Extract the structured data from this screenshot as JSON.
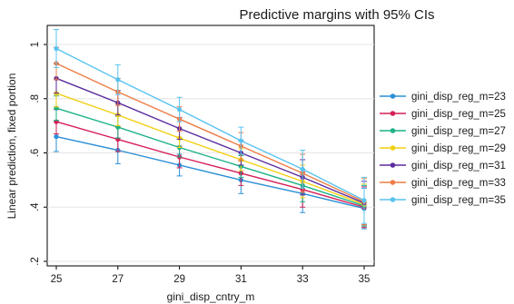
{
  "chart_data": {
    "type": "line",
    "title": "Predictive margins with 95% CIs",
    "xlabel": "gini_disp_cntry_m",
    "ylabel": "Linear prediction, fixed portion",
    "x": [
      25,
      27,
      29,
      31,
      33,
      35
    ],
    "x_ticks": [
      "25",
      "27",
      "29",
      "31",
      "33",
      "35"
    ],
    "y_ticks": [
      "1",
      ".8",
      ".6",
      ".4",
      ".2"
    ],
    "y_tick_values": [
      1.0,
      0.8,
      0.6,
      0.4,
      0.2
    ],
    "xlim": [
      25,
      35
    ],
    "ylim": [
      0.17,
      1.08
    ],
    "grid": true,
    "legend_position": "right",
    "error_bars": "95% CI",
    "series": [
      {
        "name": "gini_disp_reg_m=23",
        "color": "#2b8fd6",
        "values": [
          0.66,
          0.61,
          0.555,
          0.5,
          0.45,
          0.395
        ],
        "ci_low": [
          0.605,
          0.56,
          0.515,
          0.45,
          0.38,
          0.32
        ],
        "ci_high": [
          0.715,
          0.655,
          0.595,
          0.55,
          0.52,
          0.47
        ]
      },
      {
        "name": "gini_disp_reg_m=25",
        "color": "#d41e57",
        "values": [
          0.715,
          0.65,
          0.585,
          0.525,
          0.465,
          0.4
        ],
        "ci_low": [
          0.67,
          0.605,
          0.545,
          0.48,
          0.4,
          0.325
        ],
        "ci_high": [
          0.76,
          0.695,
          0.625,
          0.57,
          0.53,
          0.475
        ]
      },
      {
        "name": "gini_disp_reg_m=27",
        "color": "#1bb287",
        "values": [
          0.765,
          0.695,
          0.62,
          0.55,
          0.48,
          0.405
        ],
        "ci_low": [
          0.72,
          0.655,
          0.585,
          0.51,
          0.42,
          0.33
        ],
        "ci_high": [
          0.81,
          0.735,
          0.655,
          0.59,
          0.54,
          0.48
        ]
      },
      {
        "name": "gini_disp_reg_m=29",
        "color": "#f2cf10",
        "values": [
          0.82,
          0.74,
          0.655,
          0.575,
          0.495,
          0.41
        ],
        "ci_low": [
          0.77,
          0.7,
          0.62,
          0.535,
          0.435,
          0.335
        ],
        "ci_high": [
          0.87,
          0.78,
          0.69,
          0.615,
          0.555,
          0.485
        ]
      },
      {
        "name": "gini_disp_reg_m=31",
        "color": "#5b2c9e",
        "values": [
          0.875,
          0.785,
          0.69,
          0.6,
          0.51,
          0.415
        ],
        "ci_low": [
          0.82,
          0.74,
          0.65,
          0.555,
          0.445,
          0.335
        ],
        "ci_high": [
          0.93,
          0.83,
          0.73,
          0.645,
          0.575,
          0.495
        ]
      },
      {
        "name": "gini_disp_reg_m=33",
        "color": "#ee7c45",
        "values": [
          0.93,
          0.825,
          0.725,
          0.625,
          0.525,
          0.42
        ],
        "ci_low": [
          0.87,
          0.775,
          0.68,
          0.575,
          0.455,
          0.335
        ],
        "ci_high": [
          0.99,
          0.875,
          0.77,
          0.675,
          0.595,
          0.505
        ]
      },
      {
        "name": "gini_disp_reg_m=35",
        "color": "#59c3f0",
        "values": [
          0.985,
          0.87,
          0.76,
          0.645,
          0.54,
          0.425
        ],
        "ci_low": [
          0.915,
          0.815,
          0.715,
          0.595,
          0.47,
          0.34
        ],
        "ci_high": [
          1.055,
          0.925,
          0.805,
          0.695,
          0.61,
          0.51
        ]
      }
    ]
  }
}
